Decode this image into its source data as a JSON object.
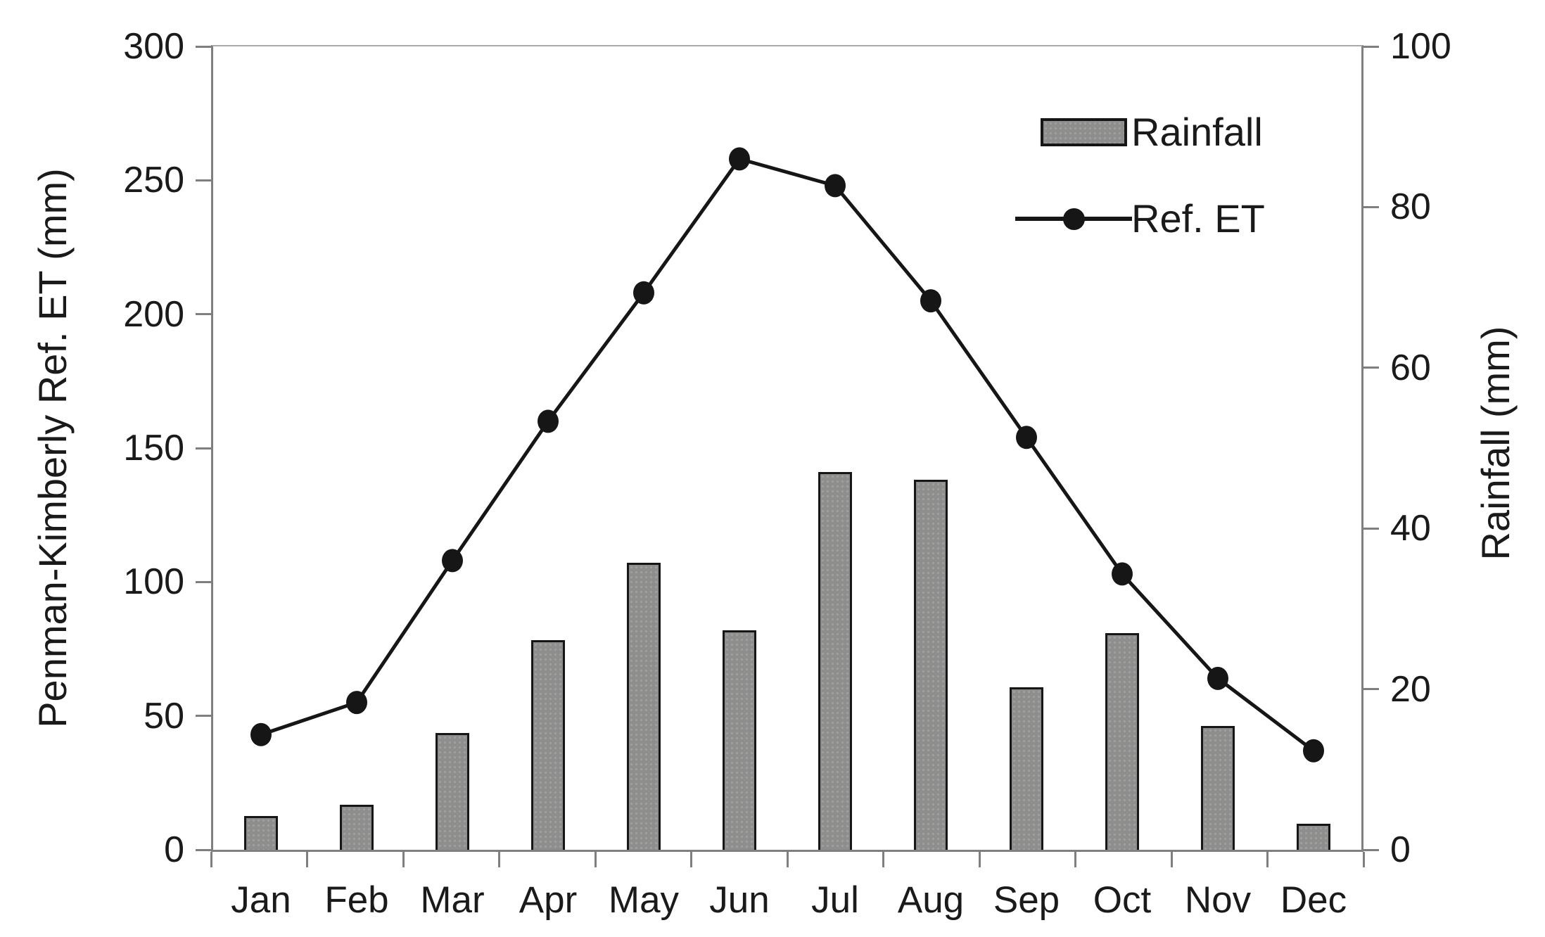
{
  "chart_data": {
    "type": "bar+line combo",
    "categories": [
      "Jan",
      "Feb",
      "Mar",
      "Apr",
      "May",
      "Jun",
      "Jul",
      "Aug",
      "Sep",
      "Oct",
      "Nov",
      "Dec"
    ],
    "series": [
      {
        "name": "Rainfall",
        "type": "bar",
        "axis": "right",
        "unit": "mm",
        "values": [
          4.2,
          5.6,
          14.5,
          26.1,
          35.7,
          27.3,
          47.0,
          46.1,
          20.2,
          27.0,
          15.4,
          3.2
        ]
      },
      {
        "name": "Ref. ET",
        "type": "line",
        "axis": "left",
        "unit": "mm",
        "values": [
          43,
          55,
          108,
          160,
          208,
          258,
          248,
          205,
          154,
          103,
          64,
          37
        ]
      }
    ],
    "left_axis": {
      "title": "Penman-Kimberly Ref. ET (mm)",
      "min": 0,
      "max": 300,
      "step": 50,
      "tick_labels": [
        "0",
        "50",
        "100",
        "150",
        "200",
        "250",
        "300"
      ]
    },
    "right_axis": {
      "title": "Rainfall (mm)",
      "min": 0,
      "max": 100,
      "step": 20,
      "tick_labels": [
        "0",
        "20",
        "40",
        "60",
        "80",
        "100"
      ]
    },
    "legend": {
      "position": "top-right-inside",
      "entries": [
        "Rainfall",
        "Ref. ET"
      ]
    },
    "grid": false,
    "colors": {
      "bar_fill": "#8e8e8e",
      "bar_border": "#161616",
      "line": "#161616",
      "marker": "#161616",
      "axis_line": "#7f7f7f",
      "text": "#1a1a1a",
      "background": "#ffffff"
    }
  }
}
